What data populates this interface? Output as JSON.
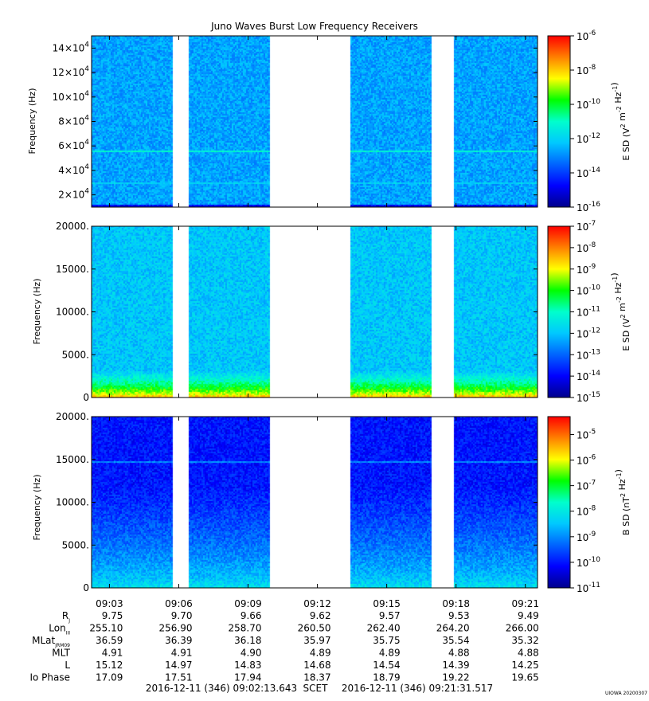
{
  "title": "Juno Waves Burst Low Frequency Receivers",
  "credit": "UIOWA 20200307",
  "colors": {
    "gap": "#ffffff",
    "noise_colormap": [
      "#00008c",
      "#0000ff",
      "#0064ff",
      "#00c8ff",
      "#00ffcc",
      "#00ff00",
      "#ffff00",
      "#ff8000",
      "#ff0000"
    ]
  },
  "time_axis": {
    "tick_labels": [
      "09:03",
      "09:06",
      "09:09",
      "09:12",
      "09:15",
      "09:18",
      "09:21"
    ],
    "start": "2016-12-11 (346) 09:02:13.643",
    "scet_label": "SCET",
    "end": "2016-12-11 (346) 09:21:31.517"
  },
  "ephemeris": {
    "rows": [
      {
        "label": "R",
        "sub": "J",
        "values": [
          "9.75",
          "9.70",
          "9.66",
          "9.62",
          "9.57",
          "9.53",
          "9.49"
        ]
      },
      {
        "label": "Lon",
        "sub": "III",
        "values": [
          "255.10",
          "256.90",
          "258.70",
          "260.50",
          "262.40",
          "264.20",
          "266.00"
        ]
      },
      {
        "label": "MLat",
        "sub": "JRM09",
        "values": [
          "36.59",
          "36.39",
          "36.18",
          "35.97",
          "35.75",
          "35.54",
          "35.32"
        ]
      },
      {
        "label": "MLT",
        "sub": "",
        "values": [
          "4.91",
          "4.91",
          "4.90",
          "4.89",
          "4.89",
          "4.88",
          "4.88"
        ]
      },
      {
        "label": "L",
        "sub": "",
        "values": [
          "15.12",
          "14.97",
          "14.83",
          "14.68",
          "14.54",
          "14.39",
          "14.25"
        ]
      },
      {
        "label": "Io Phase",
        "sub": "",
        "values": [
          "17.09",
          "17.51",
          "17.94",
          "18.37",
          "18.79",
          "19.22",
          "19.65"
        ]
      }
    ]
  },
  "chart_data": [
    {
      "type": "heatmap",
      "title": "Juno Waves Burst Low Frequency Receivers",
      "ylabel": "Frequency (Hz)",
      "ylim": [
        10000,
        150000
      ],
      "yticks": [
        {
          "value": 20000,
          "m": "2",
          "e": "4"
        },
        {
          "value": 40000,
          "m": "4",
          "e": "4"
        },
        {
          "value": 60000,
          "m": "6",
          "e": "4"
        },
        {
          "value": 80000,
          "m": "8",
          "e": "4"
        },
        {
          "value": 100000,
          "m": "10",
          "e": "4"
        },
        {
          "value": 120000,
          "m": "12",
          "e": "4"
        },
        {
          "value": 140000,
          "m": "14",
          "e": "4"
        }
      ],
      "colorbar": {
        "label_base": "E SD (V",
        "label_unit": "2 m-2 Hz-1",
        "log_range": [
          -16,
          -6
        ],
        "ticks": [
          {
            "m": "10",
            "e": "-6"
          },
          {
            "m": "10",
            "e": "-8"
          },
          {
            "m": "10",
            "e": "-10"
          },
          {
            "m": "10",
            "e": "-12"
          },
          {
            "m": "10",
            "e": "-14"
          },
          {
            "m": "10",
            "e": "-16"
          }
        ]
      },
      "background_level": 0.33,
      "data_segments": [
        [
          "09:02:13",
          "09:05:45"
        ],
        [
          "09:06:25",
          "09:09:55"
        ],
        [
          "09:13:25",
          "09:16:55"
        ],
        [
          "09:17:55",
          "09:21:31"
        ]
      ],
      "features": [
        {
          "kind": "line",
          "frequency_hz": 56000,
          "level": 0.48
        },
        {
          "kind": "line",
          "frequency_hz": 30000,
          "level": 0.4
        },
        {
          "kind": "band",
          "frequency_range_hz": [
            10000,
            13000
          ],
          "level": 0.12
        }
      ]
    },
    {
      "type": "heatmap",
      "ylabel": "Frequency (Hz)",
      "ylim": [
        0,
        20000
      ],
      "yticks": [
        {
          "value": 0,
          "label": "0"
        },
        {
          "value": 5000,
          "label": "5000."
        },
        {
          "value": 10000,
          "label": "10000."
        },
        {
          "value": 15000,
          "label": "15000."
        },
        {
          "value": 20000,
          "label": "20000."
        }
      ],
      "colorbar": {
        "label_base": "E SD (V",
        "label_unit": "2 m-2 Hz-1",
        "log_range": [
          -15,
          -7
        ],
        "ticks": [
          {
            "m": "10",
            "e": "-7"
          },
          {
            "m": "10",
            "e": "-8"
          },
          {
            "m": "10",
            "e": "-9"
          },
          {
            "m": "10",
            "e": "-10"
          },
          {
            "m": "10",
            "e": "-11"
          },
          {
            "m": "10",
            "e": "-12"
          },
          {
            "m": "10",
            "e": "-13"
          },
          {
            "m": "10",
            "e": "-14"
          },
          {
            "m": "10",
            "e": "-15"
          }
        ]
      },
      "background_level": 0.38,
      "data_segments": [
        [
          "09:02:13",
          "09:05:45"
        ],
        [
          "09:06:25",
          "09:09:55"
        ],
        [
          "09:13:25",
          "09:16:55"
        ],
        [
          "09:17:55",
          "09:21:31"
        ]
      ],
      "features": [
        {
          "kind": "gradient",
          "frequency_range_hz": [
            0,
            3200
          ],
          "level_at_bottom": 0.9,
          "level_at_top": 0.38
        }
      ]
    },
    {
      "type": "heatmap",
      "ylabel": "Frequency (Hz)",
      "ylim": [
        0,
        20000
      ],
      "yticks": [
        {
          "value": 0,
          "label": "0"
        },
        {
          "value": 5000,
          "label": "5000."
        },
        {
          "value": 10000,
          "label": "10000."
        },
        {
          "value": 15000,
          "label": "15000."
        },
        {
          "value": 20000,
          "label": "20000."
        }
      ],
      "colorbar": {
        "label_base": "B SD (nT",
        "label_unit": "2 Hz-1",
        "log_range": [
          -11,
          -4.3
        ],
        "ticks": [
          {
            "m": "10",
            "e": "-5"
          },
          {
            "m": "10",
            "e": "-6"
          },
          {
            "m": "10",
            "e": "-7"
          },
          {
            "m": "10",
            "e": "-8"
          },
          {
            "m": "10",
            "e": "-9"
          },
          {
            "m": "10",
            "e": "-10"
          },
          {
            "m": "10",
            "e": "-11"
          }
        ]
      },
      "background_level": 0.15,
      "data_segments": [
        [
          "09:02:13",
          "09:05:45"
        ],
        [
          "09:06:25",
          "09:09:55"
        ],
        [
          "09:13:25",
          "09:16:55"
        ],
        [
          "09:17:55",
          "09:21:31"
        ]
      ],
      "features": [
        {
          "kind": "gradient",
          "frequency_range_hz": [
            0,
            12000
          ],
          "level_at_bottom": 0.45,
          "level_at_top": 0.15
        },
        {
          "kind": "line",
          "frequency_hz": 14800,
          "level": 0.3
        }
      ]
    }
  ]
}
